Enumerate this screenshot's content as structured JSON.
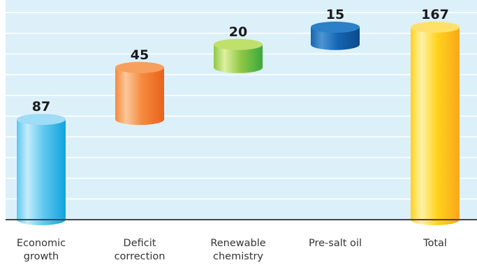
{
  "chart_data": {
    "type": "bar",
    "subtype": "waterfall-cylinder",
    "title": "",
    "xlabel": "",
    "ylabel": "",
    "categories": [
      [
        "Economic",
        "growth"
      ],
      [
        "Deficit",
        "correction"
      ],
      [
        "Renewable",
        "chemistry"
      ],
      [
        "Pre-salt oil"
      ],
      [
        "Total"
      ]
    ],
    "values": [
      87,
      45,
      20,
      15,
      167
    ],
    "labels": [
      "87",
      "45",
      "20",
      "15",
      "167"
    ],
    "ylim": [
      0,
      170
    ],
    "grid": true,
    "legend": "none"
  },
  "colors": {
    "plot_bg": "#dcf0fa",
    "gridline": "#ffffff",
    "axis": "#444444",
    "bars": [
      {
        "light": "#c4ecfb",
        "mid": "#5fc8ee",
        "dark": "#11a3dc",
        "top": "#9fdcf5"
      },
      {
        "light": "#fbc79a",
        "mid": "#f58a3d",
        "dark": "#e8621b",
        "top": "#f7a05e"
      },
      {
        "light": "#def0a0",
        "mid": "#8fc846",
        "dark": "#3aa83c",
        "top": "#bfe06b"
      },
      {
        "light": "#4f95d3",
        "mid": "#1565b2",
        "dark": "#0b4a8c",
        "top": "#2b80c8"
      },
      {
        "light": "#fff2a8",
        "mid": "#ffd21a",
        "dark": "#f9a71a",
        "top": "#ffe16a"
      }
    ]
  }
}
